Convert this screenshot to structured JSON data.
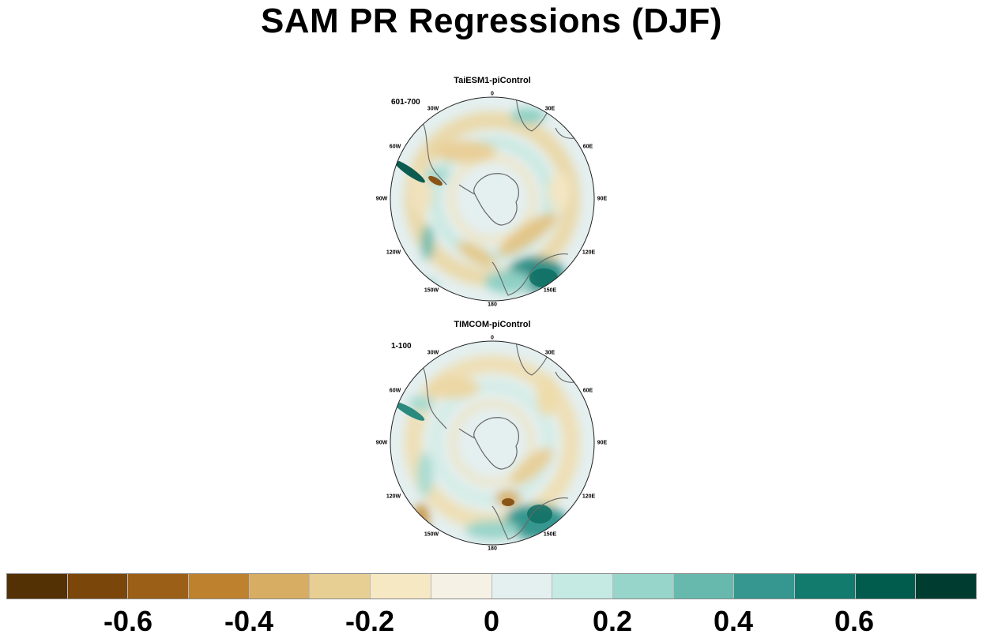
{
  "title": "SAM PR Regressions (DJF)",
  "panels": [
    {
      "model": "TaiESM1-piControl",
      "period": "601-700"
    },
    {
      "model": "TIMCOM-piControl",
      "period": "1-100"
    }
  ],
  "longitude_labels": [
    "0",
    "30E",
    "60E",
    "90E",
    "120E",
    "150E",
    "180",
    "150W",
    "120W",
    "90W",
    "60W",
    "30W"
  ],
  "colorbar": {
    "colors": [
      "#543005",
      "#7a460a",
      "#9c5f17",
      "#be822f",
      "#d6ad63",
      "#e7cf93",
      "#f5e8c3",
      "#f5f1e4",
      "#e4efef",
      "#c5e9e3",
      "#97d4c9",
      "#67b9ad",
      "#35978f",
      "#137a6e",
      "#015c4e",
      "#003c30"
    ],
    "tick_labels": [
      "-0.6",
      "-0.4",
      "-0.2",
      "0",
      "0.2",
      "0.4",
      "0.6"
    ]
  }
}
